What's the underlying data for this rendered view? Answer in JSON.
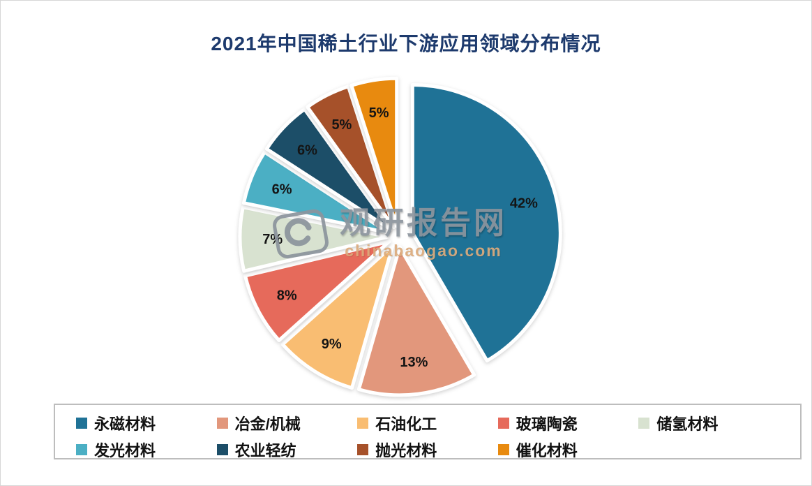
{
  "title": "2021年中国稀土行业下游应用领域分布情况",
  "watermark": {
    "name": "观研报告网",
    "domain": "chinabaogao.com"
  },
  "chart_data": {
    "type": "pie",
    "title": "2021年中国稀土行业下游应用领域分布情况",
    "labels": [
      "永磁材料",
      "冶金/机械",
      "石油化工",
      "玻璃陶瓷",
      "储氢材料",
      "发光材料",
      "农业轻纺",
      "抛光材料",
      "催化材料"
    ],
    "values": [
      42,
      13,
      9,
      8,
      7,
      6,
      6,
      5,
      5
    ],
    "value_labels": [
      "42%",
      "13%",
      "9%",
      "8%",
      "7%",
      "6%",
      "6%",
      "5%",
      "5%"
    ],
    "colors": [
      "#1F7296",
      "#E2977C",
      "#F9BD72",
      "#E66A5B",
      "#D8E2D0",
      "#4BAFC4",
      "#1C4E68",
      "#A6512A",
      "#E88A0F"
    ],
    "start_angle_deg": 0,
    "direction": "clockwise",
    "exploded": true,
    "legend_position": "bottom"
  }
}
